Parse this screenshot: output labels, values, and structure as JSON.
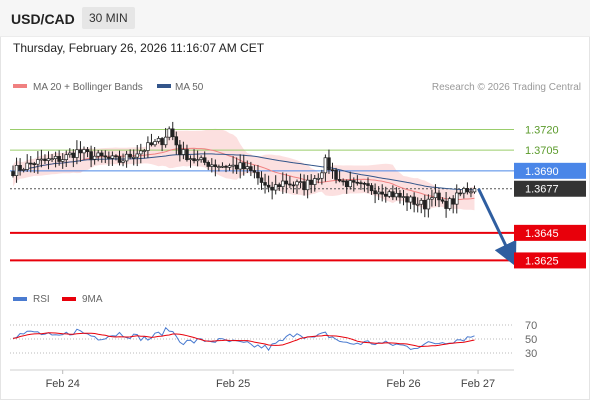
{
  "header": {
    "pair": "USD/CAD",
    "timeframe": "30 MIN"
  },
  "timestamp": "Thursday, February 26, 2026 11:16:07 AM CET",
  "legend": {
    "ma20": "MA 20 + Bollinger Bands",
    "ma50": "MA 50",
    "credit": "Research © 2026 Trading Central"
  },
  "rsi_legend": {
    "rsi": "RSI",
    "ma9": "9MA"
  },
  "colors": {
    "bull": "#222222",
    "bear": "#222222",
    "ma20": "#f08080",
    "ma50": "#33558a",
    "band": "#fbd6d6",
    "support": "#e8000b",
    "resistance_strong": "#4a86e8",
    "resistance_weak": "#9acd6b",
    "current": "#333333",
    "arrow": "#2f5ea0"
  },
  "chart_data": {
    "type": "candlestick",
    "ylim": [
      1.3605,
      1.3745
    ],
    "x_ticks": [
      {
        "label": "Feb 24",
        "bar": 14
      },
      {
        "label": "Feb 25",
        "bar": 62
      },
      {
        "label": "Feb 26",
        "bar": 110
      },
      {
        "label": "Feb 27",
        "bar": 131
      }
    ],
    "levels": [
      {
        "label": "1.3720",
        "value": 1.372,
        "kind": "resistance_weak"
      },
      {
        "label": "1.3705",
        "value": 1.3705,
        "kind": "resistance_weak"
      },
      {
        "label": "1.3690",
        "value": 1.369,
        "kind": "resistance_strong"
      },
      {
        "label": "1.3677",
        "value": 1.3677,
        "kind": "current"
      },
      {
        "label": "1.3645",
        "value": 1.3645,
        "kind": "support"
      },
      {
        "label": "1.3625",
        "value": 1.3625,
        "kind": "support"
      }
    ],
    "close_anchors": [
      [
        0,
        1.369
      ],
      [
        6,
        1.3696
      ],
      [
        14,
        1.3699
      ],
      [
        18,
        1.3704
      ],
      [
        22,
        1.3701
      ],
      [
        30,
        1.3697
      ],
      [
        36,
        1.3705
      ],
      [
        42,
        1.3712
      ],
      [
        44,
        1.372
      ],
      [
        47,
        1.3704
      ],
      [
        52,
        1.3697
      ],
      [
        58,
        1.3694
      ],
      [
        64,
        1.3693
      ],
      [
        68,
        1.3688
      ],
      [
        72,
        1.3675
      ],
      [
        76,
        1.3682
      ],
      [
        82,
        1.3679
      ],
      [
        86,
        1.3687
      ],
      [
        88,
        1.3696
      ],
      [
        92,
        1.3683
      ],
      [
        96,
        1.3679
      ],
      [
        104,
        1.3676
      ],
      [
        110,
        1.367
      ],
      [
        116,
        1.3665
      ],
      [
        118,
        1.3674
      ],
      [
        121,
        1.3665
      ],
      [
        124,
        1.3668
      ],
      [
        127,
        1.3676
      ],
      [
        130,
        1.3677
      ]
    ],
    "forecast": {
      "from": 1.3677,
      "to": 1.3625
    },
    "rsi": {
      "levels": [
        {
          "label": "70",
          "value": 70
        },
        {
          "label": "50",
          "value": 50
        },
        {
          "label": "30",
          "value": 30
        }
      ],
      "anchors": [
        [
          0,
          55
        ],
        [
          6,
          60
        ],
        [
          12,
          52
        ],
        [
          18,
          62
        ],
        [
          24,
          52
        ],
        [
          30,
          58
        ],
        [
          38,
          50
        ],
        [
          44,
          64
        ],
        [
          48,
          45
        ],
        [
          54,
          48
        ],
        [
          60,
          47
        ],
        [
          66,
          42
        ],
        [
          72,
          37
        ],
        [
          76,
          48
        ],
        [
          80,
          60
        ],
        [
          84,
          50
        ],
        [
          88,
          57
        ],
        [
          94,
          43
        ],
        [
          100,
          45
        ],
        [
          108,
          42
        ],
        [
          112,
          38
        ],
        [
          116,
          42
        ],
        [
          120,
          45
        ],
        [
          124,
          48
        ],
        [
          128,
          52
        ],
        [
          130,
          55
        ]
      ]
    }
  }
}
